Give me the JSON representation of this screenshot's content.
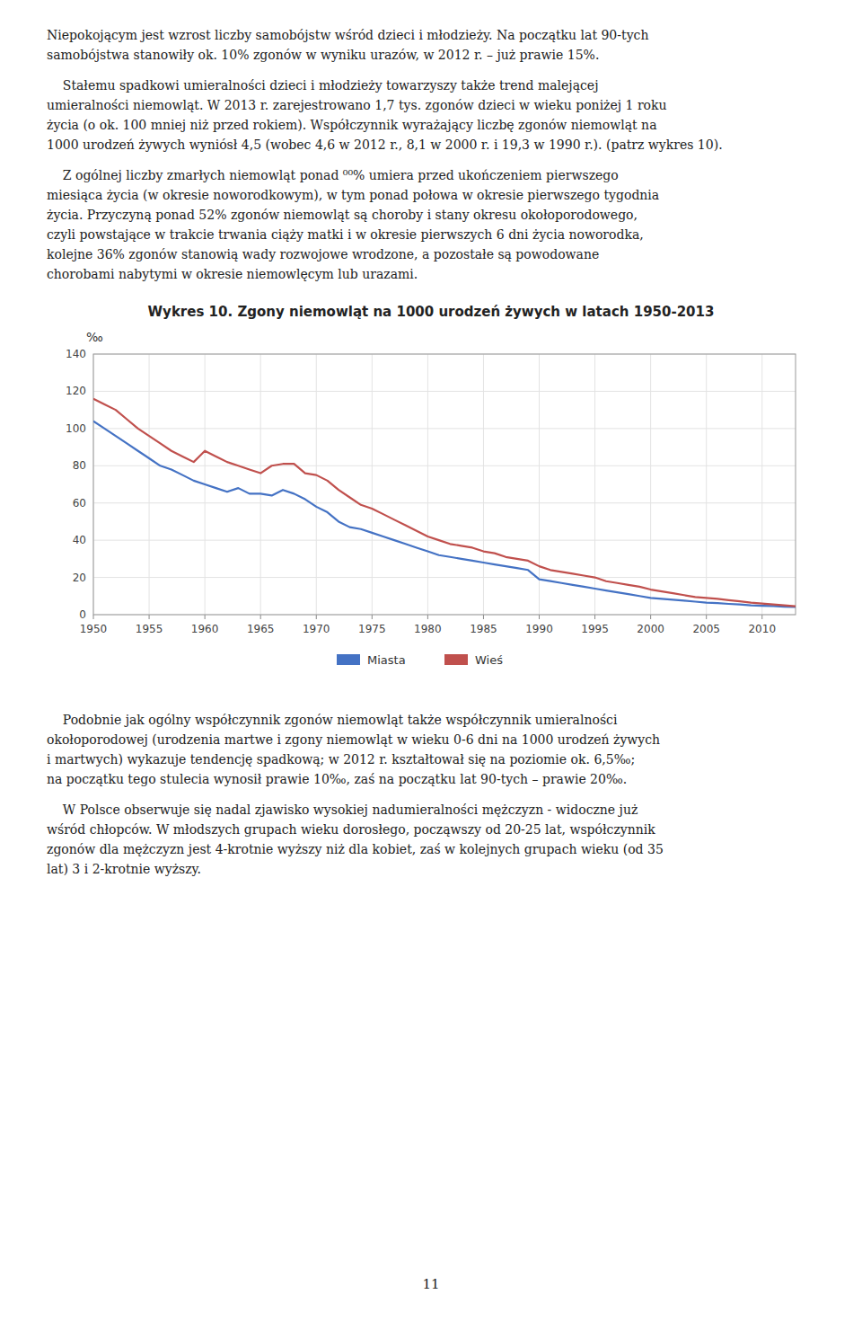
{
  "chart_data": {
    "type": "line",
    "title": "Wykres 10. Zgony niemowląt na 1000 urodzeń żywych w latach 1950-2013",
    "y_label": "‰",
    "x": [
      1950,
      1951,
      1952,
      1953,
      1954,
      1955,
      1956,
      1957,
      1958,
      1959,
      1960,
      1961,
      1962,
      1963,
      1964,
      1965,
      1966,
      1967,
      1968,
      1969,
      1970,
      1971,
      1972,
      1973,
      1974,
      1975,
      1976,
      1977,
      1978,
      1979,
      1980,
      1981,
      1982,
      1983,
      1984,
      1985,
      1986,
      1987,
      1988,
      1989,
      1990,
      1991,
      1992,
      1993,
      1994,
      1995,
      1996,
      1997,
      1998,
      1999,
      2000,
      2001,
      2002,
      2003,
      2004,
      2005,
      2006,
      2007,
      2008,
      2009,
      2010,
      2011,
      2012,
      2013
    ],
    "series": [
      {
        "name": "Miasta",
        "color": "#4472C4",
        "values": [
          104,
          100,
          96,
          92,
          88,
          84,
          80,
          78,
          75,
          72,
          70,
          68,
          66,
          68,
          65,
          65,
          64,
          67,
          65,
          62,
          58,
          55,
          50,
          47,
          46,
          44,
          42,
          40,
          38,
          36,
          34,
          32,
          31,
          30,
          29,
          28,
          27,
          26,
          25,
          24,
          19,
          18,
          17,
          16,
          15,
          14,
          13,
          12,
          11,
          10,
          9.0,
          8.5,
          8.0,
          7.5,
          7.0,
          6.5,
          6.2,
          5.8,
          5.5,
          5.0,
          4.8,
          4.6,
          4.3,
          4.1
        ]
      },
      {
        "name": "Wieś",
        "color": "#C0504D",
        "values": [
          116,
          113,
          110,
          105,
          100,
          96,
          92,
          88,
          85,
          82,
          88,
          85,
          82,
          80,
          78,
          76,
          80,
          81,
          81,
          76,
          75,
          72,
          67,
          63,
          59,
          57,
          54,
          51,
          48,
          45,
          42,
          40,
          38,
          37,
          36,
          34,
          33,
          31,
          30,
          29,
          26,
          24,
          23,
          22,
          21,
          20,
          18,
          17,
          16,
          15,
          13.5,
          12.5,
          11.5,
          10.5,
          9.5,
          9.0,
          8.5,
          7.8,
          7.2,
          6.5,
          6.0,
          5.5,
          5.0,
          4.5
        ]
      }
    ],
    "xlim": [
      1950,
      2013
    ],
    "xticks": [
      1950,
      1955,
      1960,
      1965,
      1970,
      1975,
      1980,
      1985,
      1990,
      1995,
      2000,
      2005,
      2010
    ],
    "ylim": [
      0,
      140
    ],
    "yticks": [
      0,
      20,
      40,
      60,
      80,
      100,
      120,
      140
    ],
    "grid": true,
    "legend": "bottom"
  },
  "paragraphs": [
    [
      "Niepokojącym jest wzrost liczby samobójstw wśród dzieci i młodzieży. Na początku lat 90-tych",
      "samobójstwa stanowiły ok. 10% zgonów w wyniku urazów, w 2012 r. – już prawie 15%."
    ],
    [
      "    Stałemu spadkowi umieralności dzieci i młodzieży towarzyszy także trend malejącej",
      "umieralności niemowląt. W 2013 r. zarejestrowano 1,7 tys. zgonów dzieci w wieku poniżej 1 roku",
      "życia (o ok. 100 mniej niż przed rokiem). Współczynnik wyrażający liczbę zgonów niemowląt na",
      "1000 urodzeń żywych wyniósł 4,5 (wobec 4,6 w 2012 r., 8,1 w 2000 r. i 19,3 w 1990 r.). (patrz wykres 10)."
    ],
    [
      "    Z ogólnej liczby zmarłych niemowląt ponad ⁰⁰% umiera przed ukończeniem pierwszego",
      "miesiąca życia (w okresie noworodkowym), w tym ponad połowa w okresie pierwszego tygodnia",
      "życia. Przyczyną ponad 52% zgonów niemowląt są choroby i stany okresu okołoporodowego,",
      "czyli powstające w trakcie trwania ciąży matki i w okresie pierwszych 6 dni życia noworodka,",
      "kolejne 36% zgonów stanowią wady rozwojowe wrodzone, a pozostałe są powodowane",
      "chorobami nabytymi w okresie niemowlęcym lub urazami."
    ],
    [
      "    Podobnie jak ogólny współczynnik zgonów niemowląt także współczynnik umieralności",
      "okołoporodowej (urodzenia martwe i zgony niemowląt w wieku 0-6 dni na 1000 urodzeń żywych",
      "i martwych) wykazuje tendencję spadkową; w 2012 r. kształtował się na poziomie ok. 6,5‰;",
      "na początku tego stulecia wynosił prawie 10‰, zaś na początku lat 90-tych – prawie 20‰."
    ],
    [
      "    W Polsce obserwuje się nadal zjawisko wysokiej nadumieralności mężczyzn - widoczne już",
      "wśród chłopców. W młodszych grupach wieku dorosłego, począwszy od 20-25 lat, współczynnik",
      "zgonów dla mężczyzn jest 4-krotnie wyższy niż dla kobiet, zaś w kolejnych grupach wieku (od 35",
      "lat) 3 i 2-krotnie wyższy."
    ]
  ],
  "page_number": "11"
}
